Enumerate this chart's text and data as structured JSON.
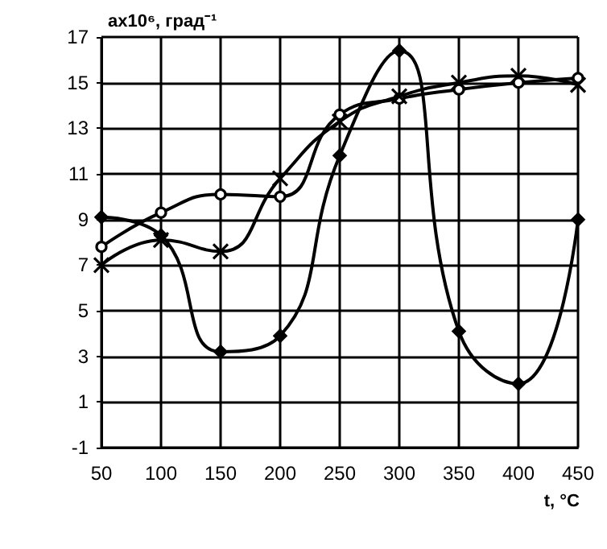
{
  "chart_data": {
    "type": "line",
    "ylabel": "ax10⁶, град⁻¹",
    "xlabel": "t, °C",
    "x": [
      50,
      100,
      150,
      200,
      250,
      300,
      350,
      400,
      450
    ],
    "series": [
      {
        "color": "#000000",
        "marker": "diamond",
        "values": [
          9.1,
          8.3,
          3.2,
          3.9,
          11.8,
          16.4,
          4.1,
          1.8,
          9.0
        ]
      },
      {
        "color": "#000000",
        "marker": "circle",
        "values": [
          7.8,
          9.3,
          10.1,
          10.0,
          13.6,
          14.3,
          14.7,
          15.0,
          15.2
        ]
      },
      {
        "color": "#000000",
        "marker": "cross",
        "values": [
          7.0,
          8.1,
          7.6,
          10.8,
          13.3,
          14.4,
          15.0,
          15.3,
          14.9
        ]
      }
    ],
    "xlim": [
      50,
      450
    ],
    "xticks": [
      50,
      100,
      150,
      200,
      250,
      300,
      350,
      400,
      450
    ],
    "ylim": [
      -1,
      17
    ],
    "yticks": [
      -1,
      1,
      3,
      5,
      7,
      9,
      11,
      13,
      15,
      17
    ],
    "grid": true
  }
}
